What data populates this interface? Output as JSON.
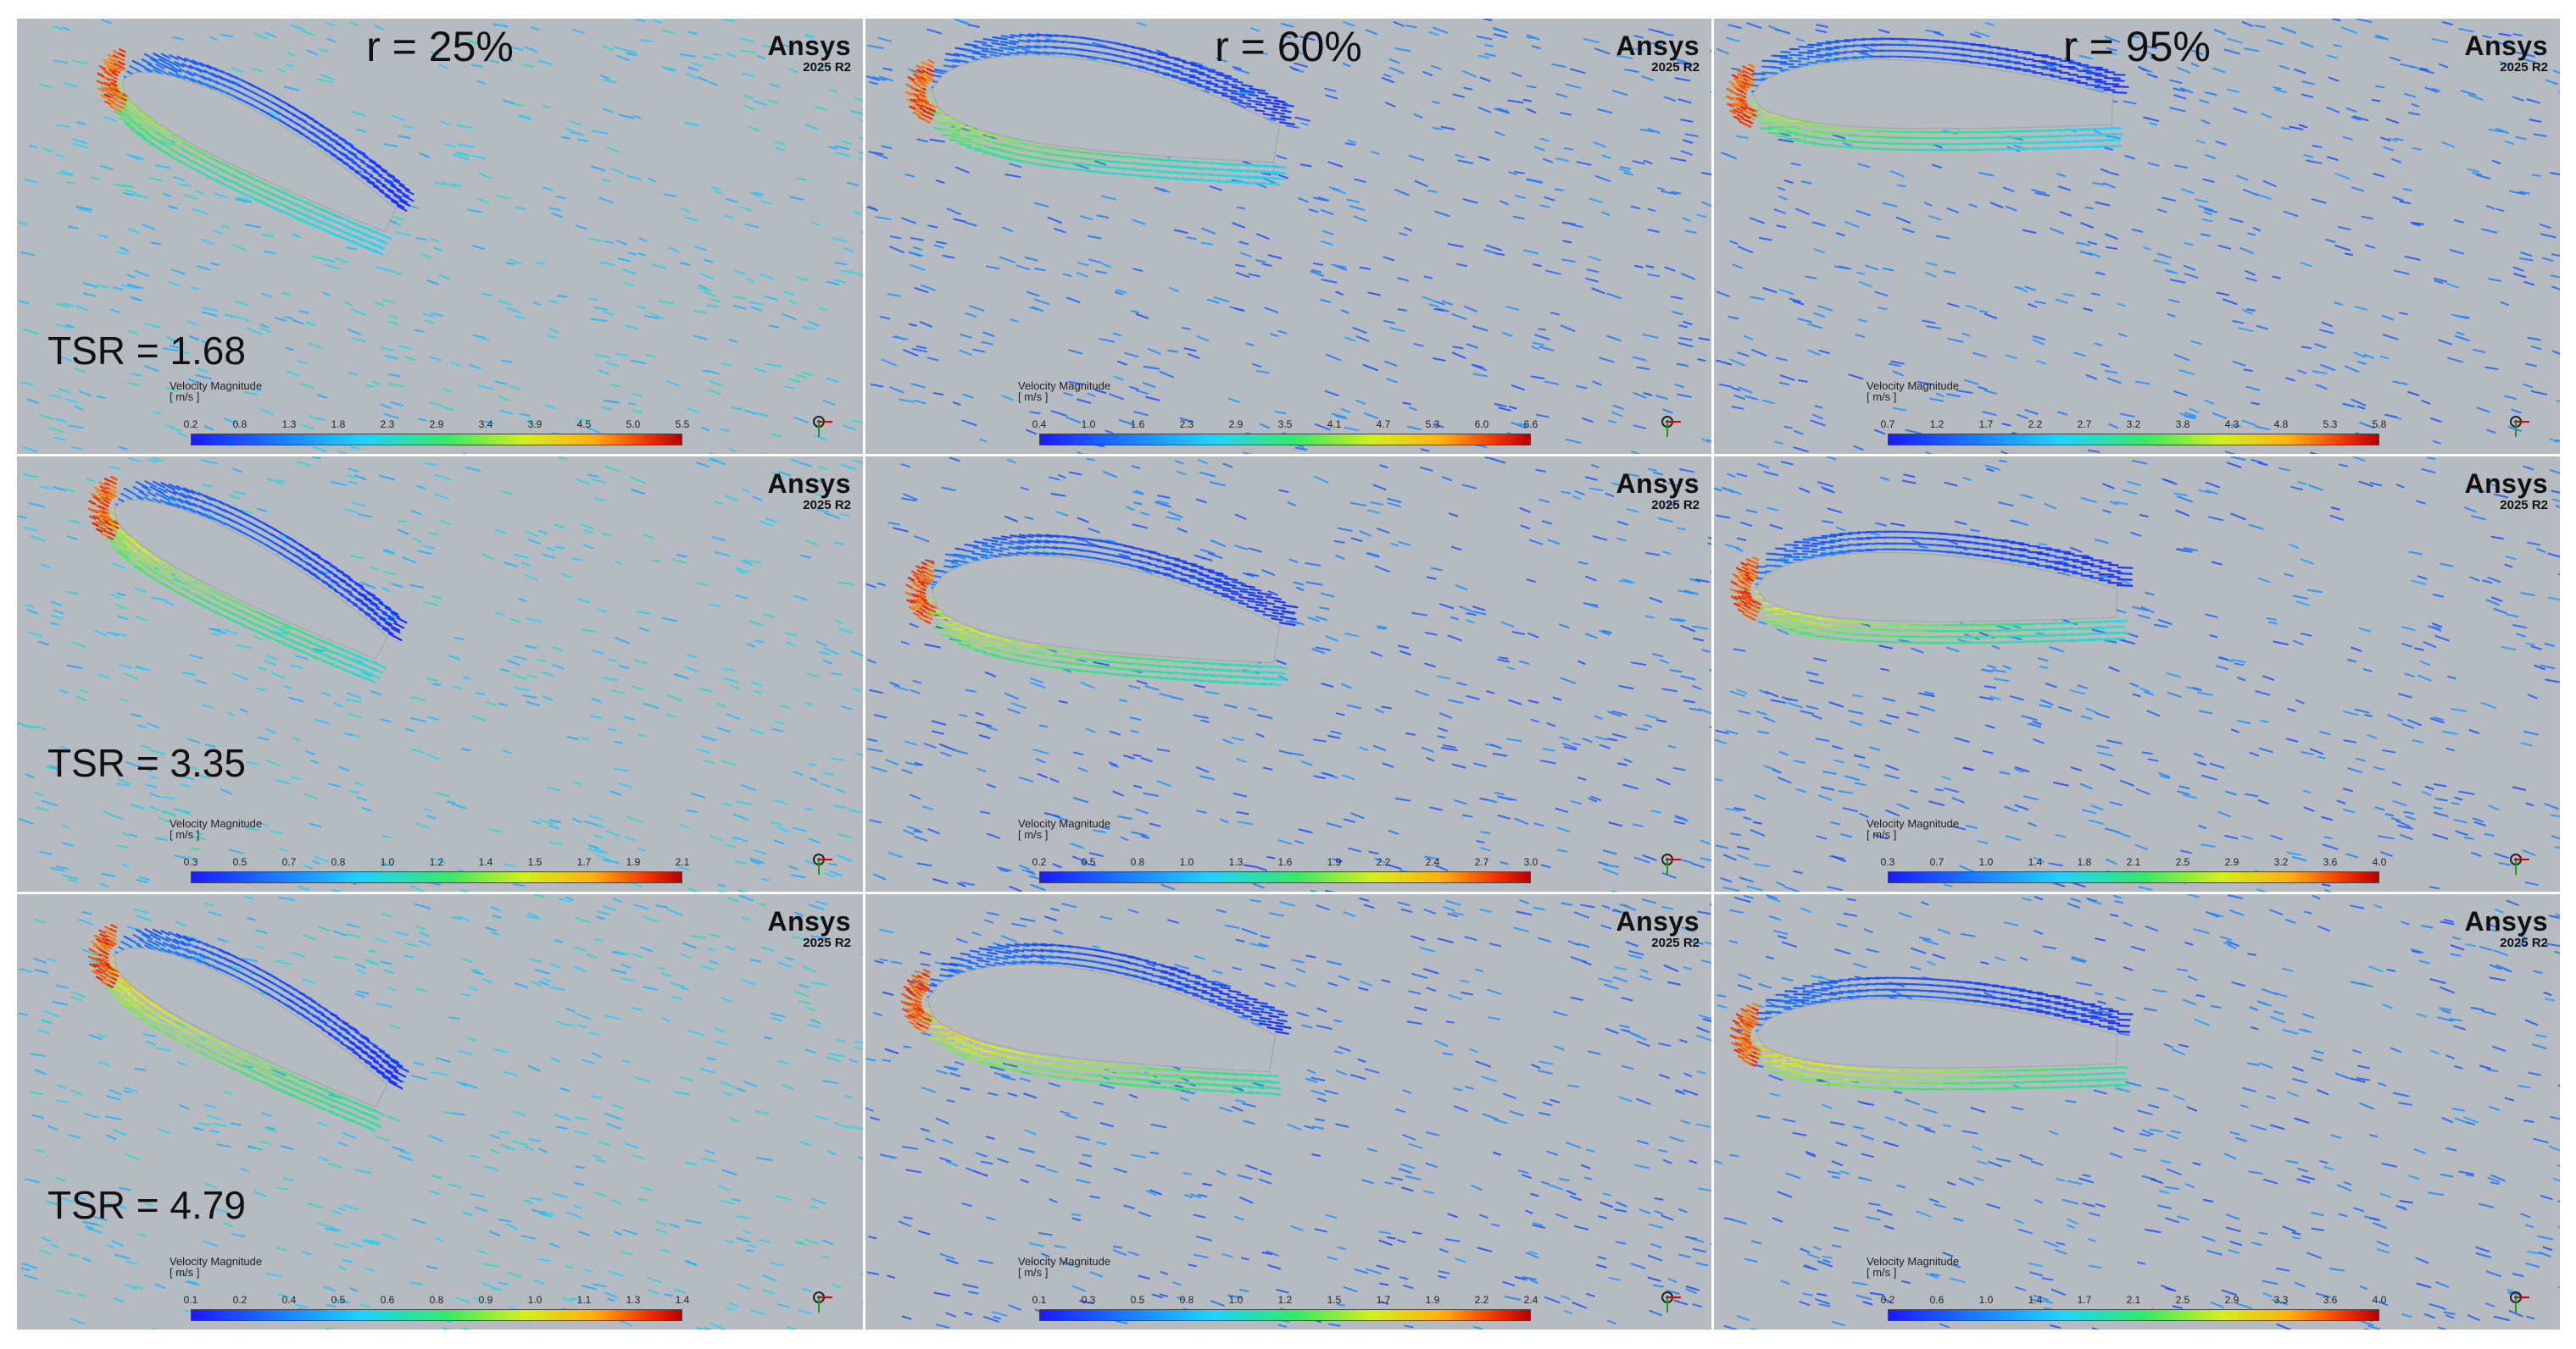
{
  "figure": {
    "columns": [
      {
        "title": "r = 25%"
      },
      {
        "title": "r = 60%"
      },
      {
        "title": "r = 95%"
      }
    ],
    "rows": [
      {
        "label": "TSR = 1.68"
      },
      {
        "label": "TSR = 3.35"
      },
      {
        "label": "TSR = 4.79"
      }
    ],
    "brand": {
      "name": "Ansys",
      "version": "2025 R2"
    },
    "legend": {
      "title": "Velocity Magnitude",
      "unit": "[ m/s ]"
    },
    "panels": [
      {
        "id": "r25-tsr168",
        "ticks": [
          "0.2",
          "0.8",
          "1.3",
          "1.8",
          "2.3",
          "2.9",
          "3.4",
          "3.9",
          "4.5",
          "5.0",
          "5.5"
        ]
      },
      {
        "id": "r60-tsr168",
        "ticks": [
          "0.4",
          "1.0",
          "1.6",
          "2.3",
          "2.9",
          "3.5",
          "4.1",
          "4.7",
          "5.3",
          "6.0",
          "6.6"
        ]
      },
      {
        "id": "r95-tsr168",
        "ticks": [
          "0.7",
          "1.2",
          "1.7",
          "2.2",
          "2.7",
          "3.2",
          "3.8",
          "4.3",
          "4.8",
          "5.3",
          "5.8"
        ]
      },
      {
        "id": "r25-tsr335",
        "ticks": [
          "0.3",
          "0.5",
          "0.7",
          "0.8",
          "1.0",
          "1.2",
          "1.4",
          "1.5",
          "1.7",
          "1.9",
          "2.1"
        ]
      },
      {
        "id": "r60-tsr335",
        "ticks": [
          "0.2",
          "0.5",
          "0.8",
          "1.0",
          "1.3",
          "1.6",
          "1.9",
          "2.2",
          "2.4",
          "2.7",
          "3.0"
        ]
      },
      {
        "id": "r95-tsr335",
        "ticks": [
          "0.3",
          "0.7",
          "1.0",
          "1.4",
          "1.8",
          "2.1",
          "2.5",
          "2.9",
          "3.2",
          "3.6",
          "4.0"
        ]
      },
      {
        "id": "r25-tsr479",
        "ticks": [
          "0.1",
          "0.2",
          "0.4",
          "0.5",
          "0.6",
          "0.8",
          "0.9",
          "1.0",
          "1.1",
          "1.3",
          "1.4"
        ]
      },
      {
        "id": "r60-tsr479",
        "ticks": [
          "0.1",
          "0.3",
          "0.5",
          "0.8",
          "1.0",
          "1.2",
          "1.5",
          "1.7",
          "1.9",
          "2.2",
          "2.4"
        ]
      },
      {
        "id": "r95-tsr479",
        "ticks": [
          "0.2",
          "0.6",
          "1.0",
          "1.4",
          "1.7",
          "2.1",
          "2.5",
          "2.9",
          "3.3",
          "3.6",
          "4.0"
        ]
      }
    ]
  }
}
